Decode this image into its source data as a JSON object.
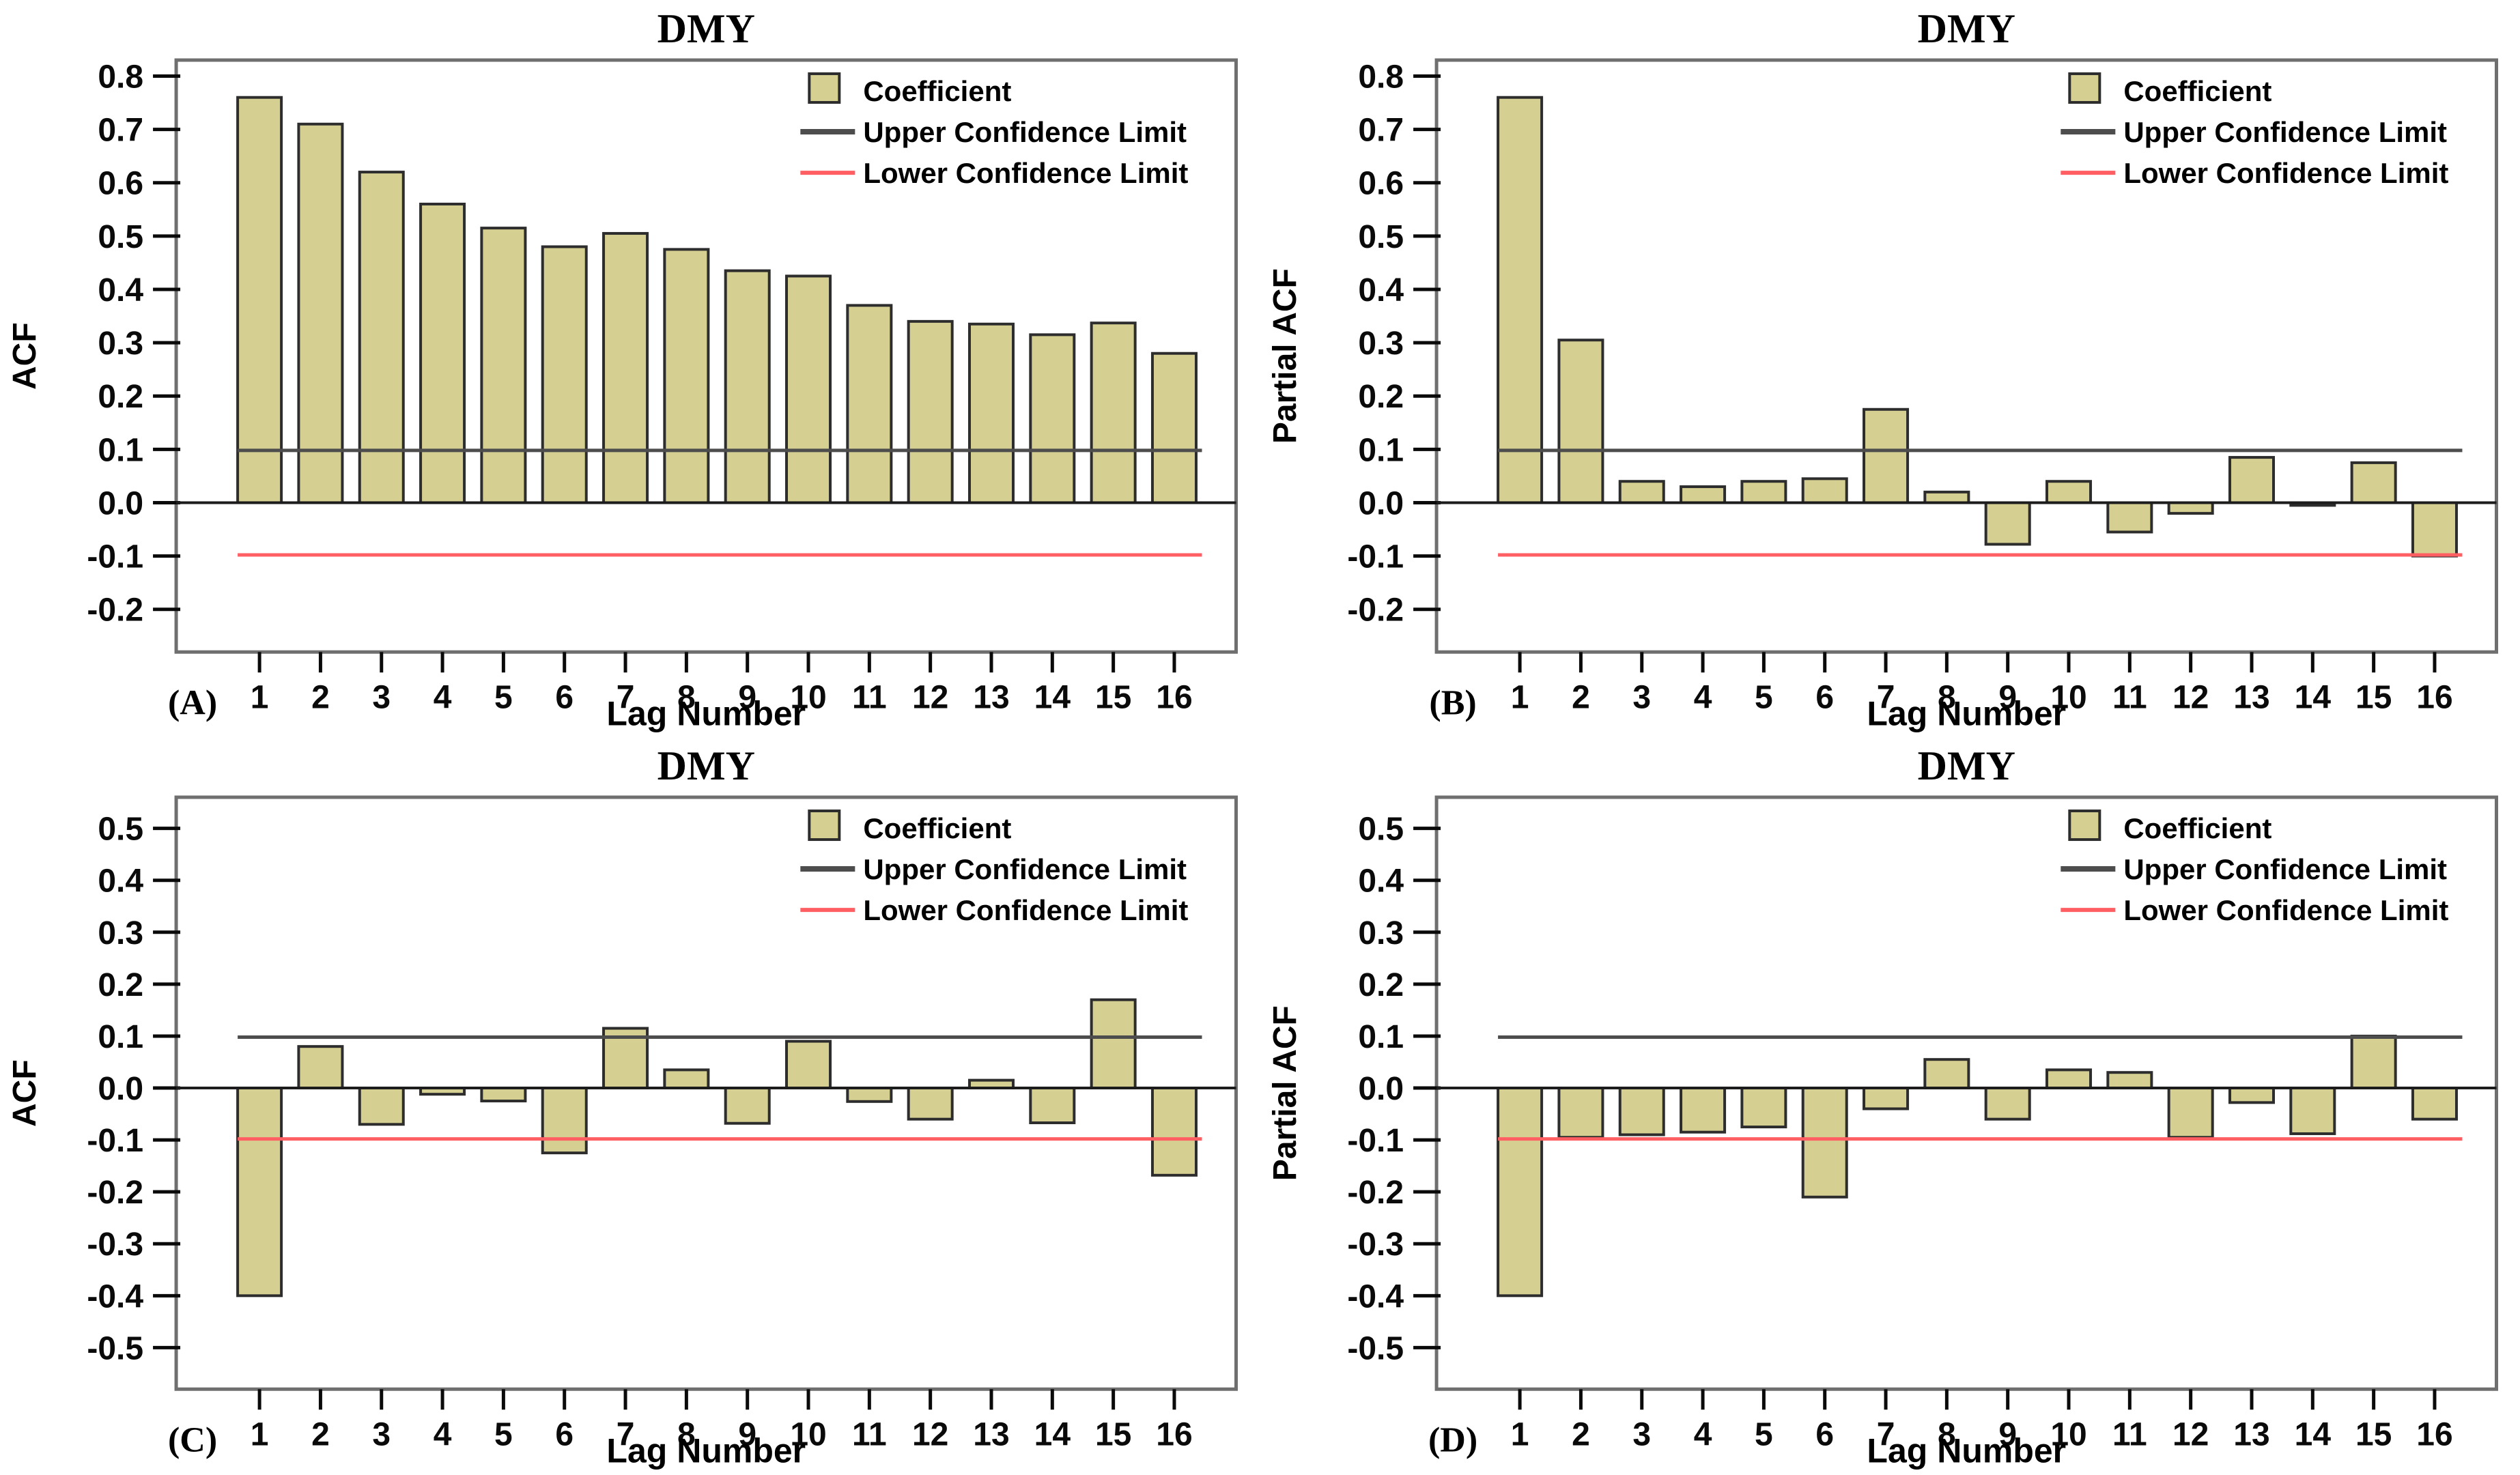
{
  "figure": {
    "background": "#ffffff"
  },
  "colors": {
    "bar_fill": "#d6cf92",
    "bar_stroke": "#2d2d2d",
    "ucl_line": "#4d4d4d",
    "lcl_line": "#ff5f63",
    "zero_line": "#1c1c1c",
    "frame": "#6f6f6f",
    "tick": "#0a0a0a",
    "text": "#000000"
  },
  "legend": {
    "items": [
      {
        "key": "coefficient",
        "label": "Coefficient"
      },
      {
        "key": "ucl",
        "label": "Upper Confidence Limit"
      },
      {
        "key": "lcl",
        "label": "Lower Confidence Limit"
      }
    ]
  },
  "chart_data": [
    {
      "panel_label": "(A)",
      "type": "bar",
      "title": "DMY",
      "xlabel": "Lag Number",
      "ylabel": "ACF",
      "categories": [
        1,
        2,
        3,
        4,
        5,
        6,
        7,
        8,
        9,
        10,
        11,
        12,
        13,
        14,
        15,
        16
      ],
      "values": [
        0.76,
        0.71,
        0.62,
        0.56,
        0.515,
        0.48,
        0.505,
        0.475,
        0.435,
        0.425,
        0.37,
        0.34,
        0.335,
        0.315,
        0.337,
        0.28
      ],
      "upper_confidence_limit": 0.098,
      "lower_confidence_limit": -0.098,
      "ylim": [
        -0.28,
        0.83
      ],
      "ytick_labels": [
        "0.8",
        "0.7",
        "0.6",
        "0.5",
        "0.4",
        "0.3",
        "0.2",
        "0.1",
        "0.0",
        "-0.1",
        "-0.2"
      ],
      "grid": false,
      "legend_position": "top-right-inside"
    },
    {
      "panel_label": "(B)",
      "type": "bar",
      "title": "DMY",
      "xlabel": "Lag Number",
      "ylabel": "Partial ACF",
      "categories": [
        1,
        2,
        3,
        4,
        5,
        6,
        7,
        8,
        9,
        10,
        11,
        12,
        13,
        14,
        15,
        16
      ],
      "values": [
        0.76,
        0.305,
        0.04,
        0.03,
        0.04,
        0.045,
        0.175,
        0.02,
        -0.078,
        0.04,
        -0.055,
        -0.02,
        0.085,
        -0.005,
        0.075,
        -0.1
      ],
      "upper_confidence_limit": 0.098,
      "lower_confidence_limit": -0.098,
      "ylim": [
        -0.28,
        0.83
      ],
      "ytick_labels": [
        "0.8",
        "0.7",
        "0.6",
        "0.5",
        "0.4",
        "0.3",
        "0.2",
        "0.1",
        "0.0",
        "-0.1",
        "-0.2"
      ],
      "grid": false,
      "legend_position": "top-right-inside"
    },
    {
      "panel_label": "(C)",
      "type": "bar",
      "title": "DMY",
      "xlabel": "Lag Number",
      "ylabel": "ACF",
      "categories": [
        1,
        2,
        3,
        4,
        5,
        6,
        7,
        8,
        9,
        10,
        11,
        12,
        13,
        14,
        15,
        16
      ],
      "values": [
        -0.4,
        0.08,
        -0.07,
        -0.012,
        -0.025,
        -0.125,
        0.115,
        0.035,
        -0.068,
        0.09,
        -0.026,
        -0.06,
        0.015,
        -0.067,
        0.17,
        -0.168
      ],
      "upper_confidence_limit": 0.098,
      "lower_confidence_limit": -0.098,
      "ylim": [
        -0.58,
        0.56
      ],
      "ytick_labels": [
        "0.5",
        "0.4",
        "0.3",
        "0.2",
        "0.1",
        "0.0",
        "-0.1",
        "-0.2",
        "-0.3",
        "-0.4",
        "-0.5"
      ],
      "grid": false,
      "legend_position": "top-right-inside"
    },
    {
      "panel_label": "(D)",
      "type": "bar",
      "title": "DMY",
      "xlabel": "Lag Number",
      "ylabel": "Partial ACF",
      "categories": [
        1,
        2,
        3,
        4,
        5,
        6,
        7,
        8,
        9,
        10,
        11,
        12,
        13,
        14,
        15,
        16
      ],
      "values": [
        -0.4,
        -0.095,
        -0.09,
        -0.085,
        -0.075,
        -0.21,
        -0.04,
        0.055,
        -0.06,
        0.035,
        0.03,
        -0.095,
        -0.028,
        -0.088,
        0.1,
        -0.06
      ],
      "upper_confidence_limit": 0.098,
      "lower_confidence_limit": -0.098,
      "ylim": [
        -0.58,
        0.56
      ],
      "ytick_labels": [
        "0.5",
        "0.4",
        "0.3",
        "0.2",
        "0.1",
        "0.0",
        "-0.1",
        "-0.2",
        "-0.3",
        "-0.4",
        "-0.5"
      ],
      "grid": false,
      "legend_position": "top-right-inside"
    }
  ]
}
